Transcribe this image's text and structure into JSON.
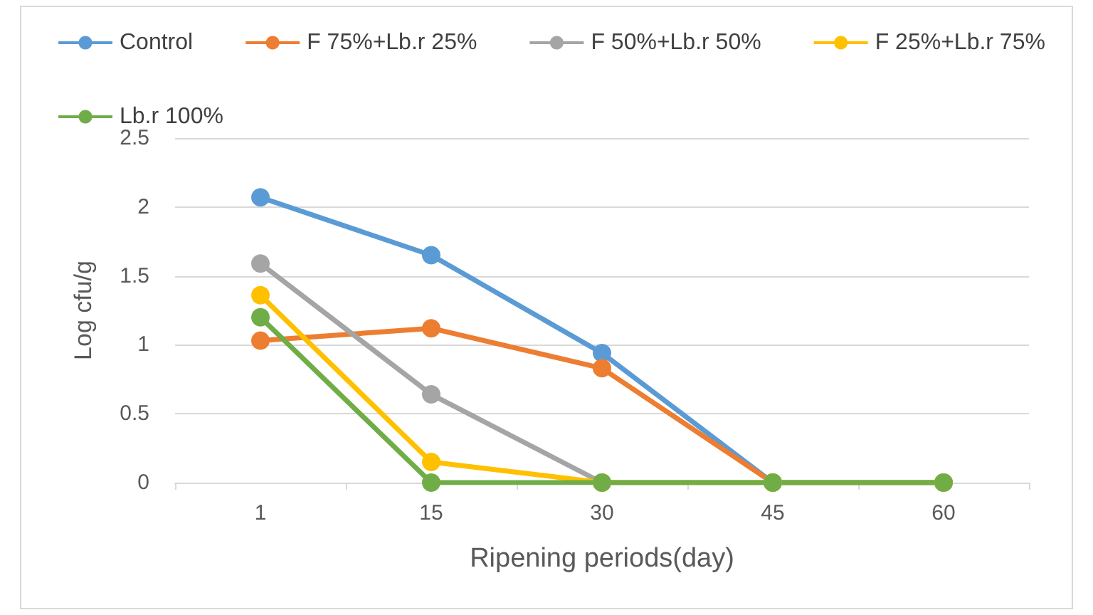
{
  "chart_data": {
    "type": "line",
    "xlabel": "Ripening periods(day)",
    "ylabel": "Log cfu/g",
    "categories": [
      "1",
      "15",
      "30",
      "45",
      "60"
    ],
    "series": [
      {
        "name": "Control",
        "color": "#5b9bd5",
        "values": [
          2.07,
          1.65,
          0.94,
          0,
          0
        ]
      },
      {
        "name": "F 75%+Lb.r 25%",
        "color": "#ed7d31",
        "values": [
          1.03,
          1.12,
          0.83,
          0,
          0
        ]
      },
      {
        "name": "F 50%+Lb.r 50%",
        "color": "#a5a5a5",
        "values": [
          1.59,
          0.64,
          0,
          0,
          0
        ]
      },
      {
        "name": "F 25%+Lb.r 75%",
        "color": "#ffc000",
        "values": [
          1.36,
          0.15,
          0,
          0,
          0
        ]
      },
      {
        "name": "Lb.r 100%",
        "color": "#70ad47",
        "values": [
          1.2,
          0,
          0,
          0,
          0
        ]
      }
    ],
    "ylim": [
      0,
      2.5
    ],
    "yticks": [
      0,
      0.5,
      1,
      1.5,
      2,
      2.5
    ],
    "grid": "y",
    "legend": "top",
    "marker": "circle",
    "line_style": "solid"
  }
}
